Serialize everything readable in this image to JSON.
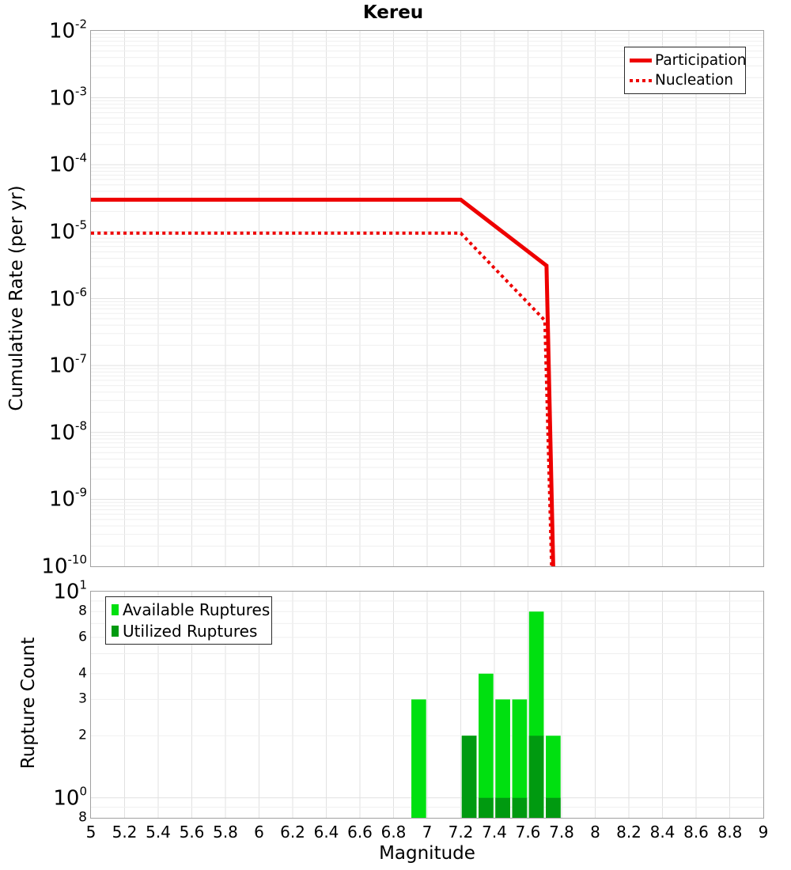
{
  "figure": {
    "title": "Kereu",
    "background": "#ffffff",
    "border_color": "#a0a0a0",
    "grid_color_major": "#e1e1e1",
    "grid_color_minor": "#efefef"
  },
  "chart_data": [
    {
      "type": "line",
      "title": "Kereu",
      "ylabel": "Cumulative Rate (per yr)",
      "xlabel": "",
      "yscale": "log",
      "ylim": [
        1e-10,
        0.01
      ],
      "xlim": [
        5,
        9
      ],
      "grid": true,
      "legend_position": "upper right",
      "ytick_exponents": [
        -2,
        -3,
        -4,
        -5,
        -6,
        -7,
        -8,
        -9,
        -10
      ],
      "series": [
        {
          "name": "Participation",
          "style": "solid",
          "color": "#ee0000",
          "points": [
            [
              5,
              3e-05
            ],
            [
              7.2,
              3e-05
            ],
            [
              7.71,
              3.1e-06
            ],
            [
              7.75,
              1e-10
            ]
          ]
        },
        {
          "name": "Nucleation",
          "style": "dotted",
          "color": "#ee0000",
          "points": [
            [
              5,
              9.5e-06
            ],
            [
              7.2,
              9.5e-06
            ],
            [
              7.7,
              4.7e-07
            ],
            [
              7.74,
              1e-10
            ]
          ]
        }
      ]
    },
    {
      "type": "bar",
      "title": "",
      "ylabel": "Rupture Count",
      "xlabel": "Magnitude",
      "yscale": "log",
      "ylim": [
        0.8,
        10
      ],
      "xlim": [
        5,
        9
      ],
      "grid": true,
      "legend_position": "upper left",
      "bin_width": 0.1,
      "xticks": [
        "5",
        "5.2",
        "5.4",
        "5.6",
        "5.8",
        "6",
        "6.2",
        "6.4",
        "6.6",
        "6.8",
        "7",
        "7.2",
        "7.4",
        "7.6",
        "7.8",
        "8",
        "8.2",
        "8.4",
        "8.6",
        "8.8",
        "9"
      ],
      "yticks_major": [
        {
          "exp": 1
        },
        {
          "exp": 0
        }
      ],
      "yticks_minor": [
        {
          "value": 8,
          "label": "8"
        },
        {
          "value": 6,
          "label": "6"
        },
        {
          "value": 4,
          "label": "4"
        },
        {
          "value": 3,
          "label": "3"
        },
        {
          "value": 2,
          "label": "2"
        },
        {
          "value": 0.8,
          "label": "8"
        }
      ],
      "series": [
        {
          "name": "Available Ruptures",
          "color": "#00e010",
          "bins": [
            {
              "magnitude": 6.9,
              "count": 3
            },
            {
              "magnitude": 7.2,
              "count": 2
            },
            {
              "magnitude": 7.3,
              "count": 4
            },
            {
              "magnitude": 7.4,
              "count": 3
            },
            {
              "magnitude": 7.5,
              "count": 3
            },
            {
              "magnitude": 7.6,
              "count": 8
            },
            {
              "magnitude": 7.7,
              "count": 2
            }
          ]
        },
        {
          "name": "Utilized Ruptures",
          "color": "#009a10",
          "bins": [
            {
              "magnitude": 7.2,
              "count": 2
            },
            {
              "magnitude": 7.3,
              "count": 1
            },
            {
              "magnitude": 7.4,
              "count": 1
            },
            {
              "magnitude": 7.5,
              "count": 1
            },
            {
              "magnitude": 7.6,
              "count": 2
            },
            {
              "magnitude": 7.7,
              "count": 1
            }
          ]
        }
      ]
    }
  ]
}
